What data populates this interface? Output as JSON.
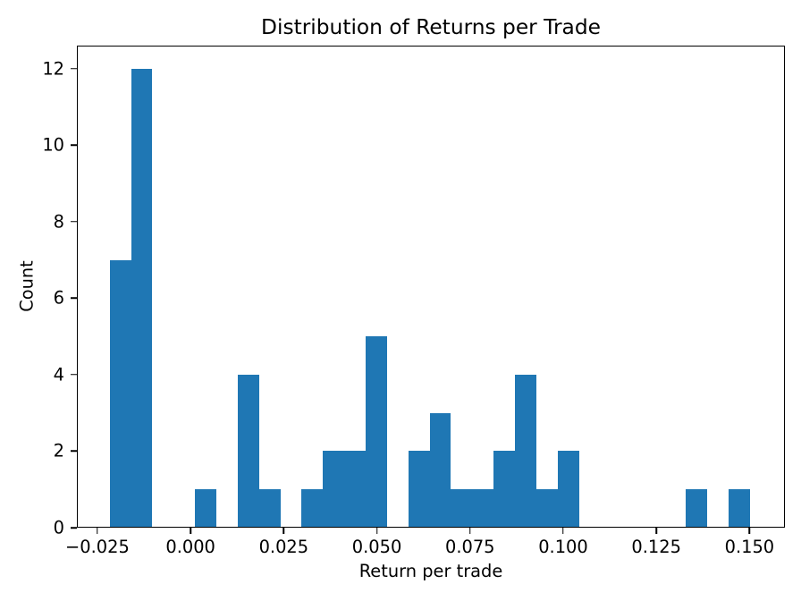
{
  "chart_data": {
    "type": "bar",
    "subtype": "histogram",
    "title": "Distribution of Returns per Trade",
    "xlabel": "Return per trade",
    "ylabel": "Count",
    "bar_color": "#1f77b4",
    "background_color": "#ffffff",
    "grid": false,
    "legend": false,
    "bins": 30,
    "bin_start": -0.0217,
    "bin_width": 0.0057245,
    "counts": [
      7,
      12,
      0,
      0,
      1,
      0,
      4,
      1,
      0,
      1,
      2,
      2,
      5,
      0,
      2,
      3,
      1,
      1,
      2,
      4,
      1,
      2,
      0,
      0,
      0,
      0,
      0,
      1,
      0,
      1
    ],
    "total_count": 53,
    "xlim": [
      -0.0305,
      0.1595
    ],
    "ylim": [
      0,
      12.6
    ],
    "xticks": [
      -0.025,
      0.0,
      0.025,
      0.05,
      0.075,
      0.1,
      0.125,
      0.15
    ],
    "xtick_labels": [
      "−0.025",
      "0.000",
      "0.025",
      "0.050",
      "0.075",
      "0.100",
      "0.125",
      "0.150"
    ],
    "yticks": [
      0,
      2,
      4,
      6,
      8,
      10,
      12
    ],
    "ytick_labels": [
      "0",
      "2",
      "4",
      "6",
      "8",
      "10",
      "12"
    ]
  }
}
